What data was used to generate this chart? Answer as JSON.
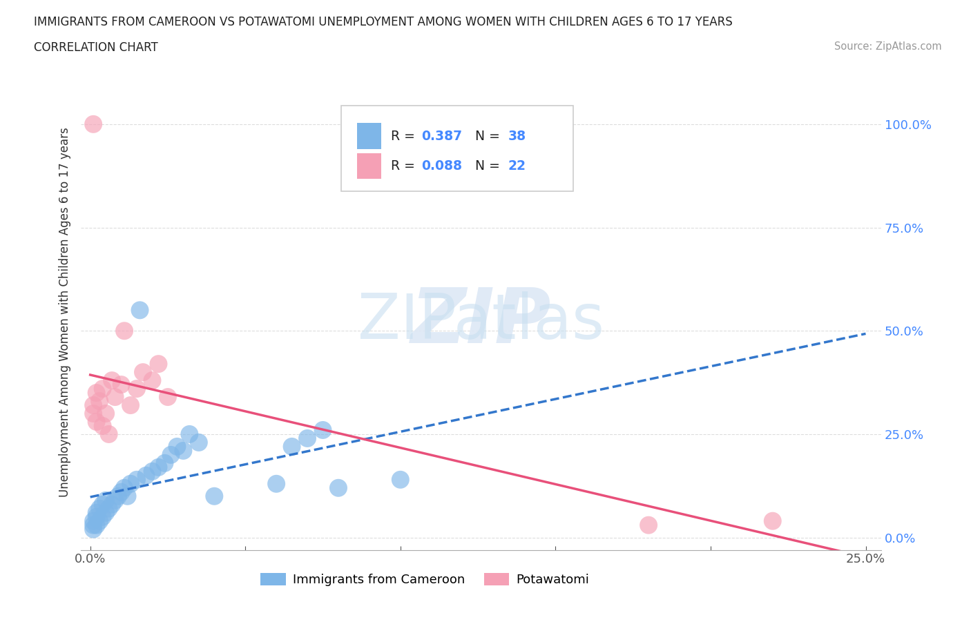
{
  "title": "IMMIGRANTS FROM CAMEROON VS POTAWATOMI UNEMPLOYMENT AMONG WOMEN WITH CHILDREN AGES 6 TO 17 YEARS",
  "subtitle": "CORRELATION CHART",
  "source": "Source: ZipAtlas.com",
  "ylabel": "Unemployment Among Women with Children Ages 6 to 17 years",
  "xlim": [
    -0.003,
    0.255
  ],
  "ylim": [
    -0.03,
    1.12
  ],
  "xtick_positions": [
    0.0,
    0.25
  ],
  "xtick_labels": [
    "0.0%",
    "25.0%"
  ],
  "ytick_positions": [
    0.0,
    0.25,
    0.5,
    0.75,
    1.0
  ],
  "ytick_labels": [
    "0.0%",
    "25.0%",
    "50.0%",
    "75.0%",
    "100.0%"
  ],
  "cameroon_color": "#7eb6e8",
  "potawatomi_color": "#f5a0b5",
  "cameroon_line_color": "#3377cc",
  "potawatomi_line_color": "#e8507a",
  "R_cameroon": 0.387,
  "N_cameroon": 38,
  "R_potawatomi": 0.088,
  "N_potawatomi": 22,
  "background_color": "#ffffff",
  "grid_color": "#dddddd",
  "tick_color": "#4488ff",
  "cameroon_x": [
    0.001,
    0.001,
    0.001,
    0.002,
    0.002,
    0.002,
    0.003,
    0.003,
    0.004,
    0.004,
    0.005,
    0.005,
    0.006,
    0.007,
    0.008,
    0.009,
    0.01,
    0.011,
    0.012,
    0.013,
    0.015,
    0.016,
    0.018,
    0.02,
    0.022,
    0.024,
    0.026,
    0.028,
    0.03,
    0.032,
    0.035,
    0.04,
    0.06,
    0.065,
    0.07,
    0.075,
    0.08,
    0.1
  ],
  "cameroon_y": [
    0.02,
    0.03,
    0.04,
    0.03,
    0.05,
    0.06,
    0.04,
    0.07,
    0.05,
    0.08,
    0.06,
    0.09,
    0.07,
    0.08,
    0.09,
    0.1,
    0.11,
    0.12,
    0.1,
    0.13,
    0.14,
    0.55,
    0.15,
    0.16,
    0.17,
    0.18,
    0.2,
    0.22,
    0.21,
    0.25,
    0.23,
    0.1,
    0.13,
    0.22,
    0.24,
    0.26,
    0.12,
    0.14
  ],
  "potawatomi_x": [
    0.001,
    0.001,
    0.002,
    0.002,
    0.003,
    0.004,
    0.004,
    0.005,
    0.006,
    0.007,
    0.008,
    0.01,
    0.011,
    0.013,
    0.015,
    0.017,
    0.02,
    0.022,
    0.025,
    0.18,
    0.22,
    0.001
  ],
  "potawatomi_y": [
    0.3,
    0.32,
    0.28,
    0.35,
    0.33,
    0.27,
    0.36,
    0.3,
    0.25,
    0.38,
    0.34,
    0.37,
    0.5,
    0.32,
    0.36,
    0.4,
    0.38,
    0.42,
    0.34,
    0.03,
    0.04,
    1.0
  ]
}
